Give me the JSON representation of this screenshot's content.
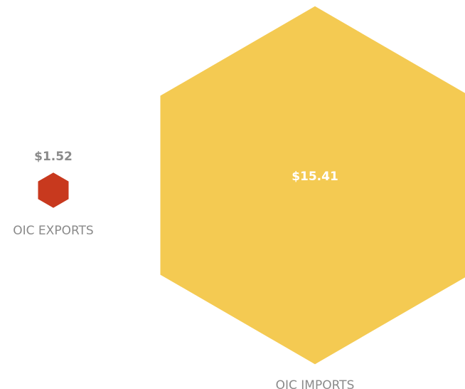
{
  "chart_data": {
    "type": "hexagon",
    "categories": [
      "OIC EXPORTS",
      "OIC IMPORTS"
    ],
    "values": [
      1.52,
      15.41
    ],
    "value_labels": [
      "$1.52",
      "$15.41"
    ],
    "colors": [
      "#c8391e",
      "#f4ca52"
    ]
  }
}
